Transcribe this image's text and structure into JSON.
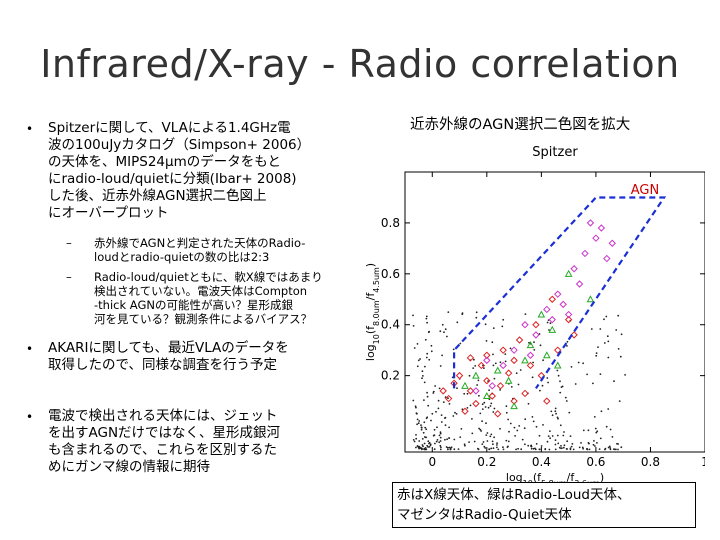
{
  "slide": {
    "title": "Infrared/X-ray - Radio correlation",
    "bullets": [
      {
        "bullet_char": "•",
        "text": "Spitzerに関して、VLAによる1.4GHz電\n波の100uJyカタログ（Simpson+ 2006）\nの天体を、MIPS24µmのデータをもと\nにradio-loud/quietに分類(Ibar+ 2008)\nした後、近赤外線AGN選択二色図上\nにオーバープロット",
        "subitems": [
          {
            "dash": "–",
            "text": "赤外線でAGNと判定された天体のRadio-\nloudとradio-quietの数の比は2:3"
          },
          {
            "dash": "–",
            "text": "Radio-loud/quietともに、軟X線ではあまり\n検出されていない。電波天体はCompton\n-thick AGNの可能性が高い？星形成銀\n河を見ている？観測条件によるバイアス？"
          }
        ]
      },
      {
        "bullet_char": "•",
        "text": "AKARIに関しても、最近VLAのデータを\n取得したので、同様な調査を行う予定"
      },
      {
        "bullet_char": "•",
        "text": "電波で検出される天体には、ジェット\nを出すAGNだけではなく、星形成銀河\nも含まれるので、これらを区別するた\nめにガンマ線の情報に期待"
      }
    ]
  },
  "plot": {
    "heading": "近赤外線のAGN選択二色図を拡大",
    "chart_data": {
      "type": "scatter",
      "title": "Spitzer",
      "xlabel": "log10(f5.8um/f3.6um)",
      "ylabel": "log10(f8.0um/f4.5um)",
      "xlim": [
        -0.1,
        1.0
      ],
      "ylim": [
        -0.1,
        1.0
      ],
      "x_ticks": [
        "0",
        "0.2",
        "0.4",
        "0.6",
        "0.8",
        "1"
      ],
      "y_ticks": [
        "0.2",
        "0.4",
        "0.6",
        "0.8"
      ],
      "annotation": "AGN",
      "agn_wedge": [
        [
          0.08,
          0.15
        ],
        [
          0.08,
          0.3
        ],
        [
          0.6,
          0.9
        ],
        [
          0.85,
          0.9
        ],
        [
          0.38,
          0.15
        ]
      ],
      "series": [
        {
          "name": "X線天体",
          "color": "#dd2222",
          "marker": "diamond",
          "points": [
            [
              0.06,
              0.11
            ],
            [
              0.1,
              0.2
            ],
            [
              0.14,
              0.14
            ],
            [
              0.18,
              0.24
            ],
            [
              0.22,
              0.12
            ],
            [
              0.25,
              0.16
            ],
            [
              0.3,
              0.1
            ],
            [
              0.12,
              0.06
            ],
            [
              0.2,
              0.28
            ],
            [
              0.08,
              0.17
            ],
            [
              0.28,
              0.21
            ],
            [
              0.16,
              0.09
            ],
            [
              0.34,
              0.13
            ],
            [
              0.24,
              0.05
            ],
            [
              0.04,
              0.14
            ],
            [
              0.36,
              0.24
            ],
            [
              0.26,
              0.3
            ],
            [
              0.4,
              0.2
            ],
            [
              0.32,
              0.34
            ],
            [
              0.42,
              0.1
            ],
            [
              0.14,
              0.27
            ],
            [
              0.46,
              0.3
            ],
            [
              0.38,
              0.4
            ],
            [
              0.5,
              0.42
            ],
            [
              0.44,
              0.5
            ],
            [
              0.2,
              0.18
            ],
            [
              0.3,
              0.26
            ],
            [
              0.52,
              0.36
            ]
          ]
        },
        {
          "name": "Radio-Loud天体",
          "color": "#22aa22",
          "marker": "triangle",
          "points": [
            [
              0.4,
              0.44
            ],
            [
              0.44,
              0.38
            ],
            [
              0.5,
              0.6
            ],
            [
              0.36,
              0.32
            ],
            [
              0.28,
              0.18
            ],
            [
              0.2,
              0.12
            ],
            [
              0.16,
              0.2
            ],
            [
              0.34,
              0.26
            ],
            [
              0.46,
              0.24
            ],
            [
              0.12,
              0.16
            ],
            [
              0.3,
              0.08
            ],
            [
              0.24,
              0.22
            ],
            [
              0.58,
              0.5
            ],
            [
              0.42,
              0.28
            ]
          ]
        },
        {
          "name": "Radio-Quiet天体",
          "color": "#cc33cc",
          "marker": "diamond",
          "points": [
            [
              0.52,
              0.62
            ],
            [
              0.56,
              0.68
            ],
            [
              0.6,
              0.74
            ],
            [
              0.64,
              0.66
            ],
            [
              0.62,
              0.78
            ],
            [
              0.46,
              0.52
            ],
            [
              0.48,
              0.48
            ],
            [
              0.38,
              0.36
            ],
            [
              0.34,
              0.4
            ],
            [
              0.42,
              0.46
            ],
            [
              0.54,
              0.56
            ],
            [
              0.3,
              0.3
            ],
            [
              0.26,
              0.24
            ],
            [
              0.2,
              0.26
            ],
            [
              0.16,
              0.14
            ],
            [
              0.58,
              0.8
            ],
            [
              0.66,
              0.72
            ],
            [
              0.44,
              0.42
            ],
            [
              0.5,
              0.44
            ],
            [
              0.36,
              0.28
            ],
            [
              0.22,
              0.16
            ]
          ]
        }
      ]
    },
    "caption": "赤はX線天体、緑はRadio-Loud天体、\nマゼンタはRadio-Quiet天体"
  }
}
